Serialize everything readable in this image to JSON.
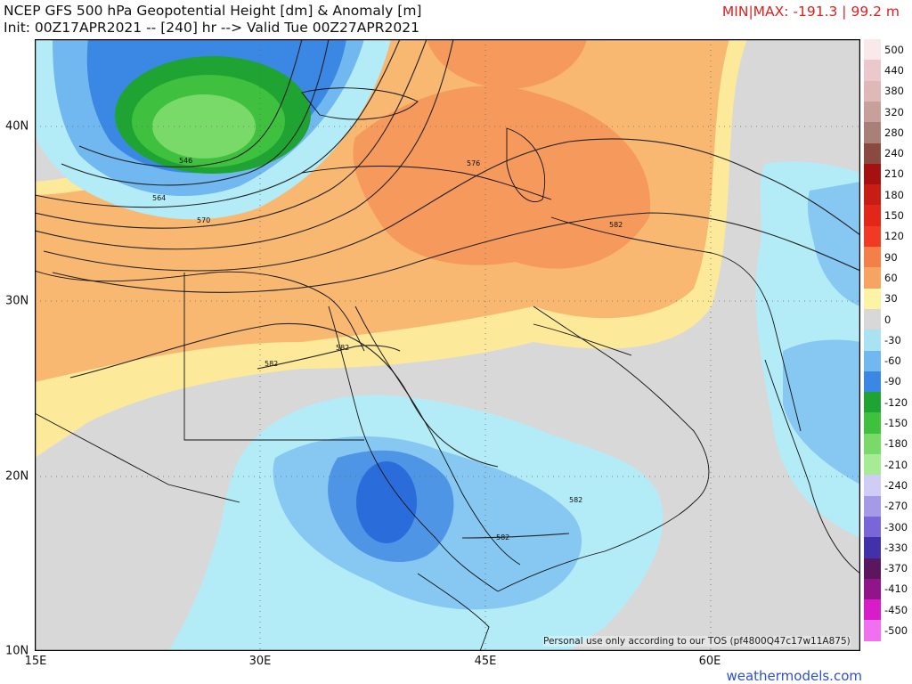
{
  "header": {
    "title_line1": "NCEP GFS 500 hPa Geopotential Height [dm] & Anomaly [m]",
    "title_line2": "Init: 00Z17APR2021 -- [240] hr --> Valid Tue 00Z27APR2021",
    "minmax": "MIN|MAX: -191.3 | 99.2 m"
  },
  "axes": {
    "lat_labels": [
      "40N",
      "30N",
      "20N",
      "10N"
    ],
    "lon_labels": [
      "15E",
      "30E",
      "45E",
      "60E"
    ]
  },
  "contour_labels": [
    "546",
    "564",
    "570",
    "576",
    "582",
    "582",
    "582",
    "582",
    "582"
  ],
  "colorbar": {
    "labels": [
      "500",
      "440",
      "380",
      "320",
      "280",
      "240",
      "210",
      "180",
      "150",
      "120",
      "90",
      "60",
      "30",
      "0",
      "-30",
      "-60",
      "-90",
      "-120",
      "-150",
      "-180",
      "-210",
      "-240",
      "-270",
      "-300",
      "-330",
      "-370",
      "-410",
      "-450",
      "-500"
    ],
    "colors": {
      "500": "#f9e9ea",
      "440": "#ebc8cb",
      "380": "#dfb8b8",
      "320": "#c89f99",
      "280": "#a98077",
      "240": "#8a4a40",
      "210": "#a51010",
      "180": "#c81d14",
      "150": "#e3261a",
      "120": "#f03a24",
      "90": "#f3804b",
      "60": "#f6a462",
      "30": "#fcf3a4",
      "0": "#d8d8d8",
      "-30": "#a9e3f2",
      "-60": "#70b8ef",
      "-90": "#3a88e4",
      "-120": "#1fa434",
      "-150": "#3fc03f",
      "-180": "#79da6a",
      "-210": "#a5ec95",
      "-240": "#cfcdf5",
      "-270": "#a49ae8",
      "-300": "#7a66d6",
      "-330": "#4231a8",
      "-370": "#5c1660",
      "-410": "#92148a",
      "-450": "#d61dc7",
      "-500": "#f070f0"
    }
  },
  "colors": {
    "neutral": "#d8d8d8",
    "warm_light": "#fde99a",
    "warm_mid": "#f9b872",
    "warm_strong": "#f59a5c",
    "cool_light": "#b3ecf7",
    "cool_mid": "#86c8f2",
    "cool_strong": "#4f95e6",
    "cold_deep": "#2a6cd9",
    "green_low": "#27a63a",
    "green_mid": "#3fc04a",
    "green_core": "#79da6a"
  },
  "footer": {
    "tos": "Personal use only according to our TOS (pf4800Q47c17w11A875)",
    "credit": "weathermodels.com"
  }
}
